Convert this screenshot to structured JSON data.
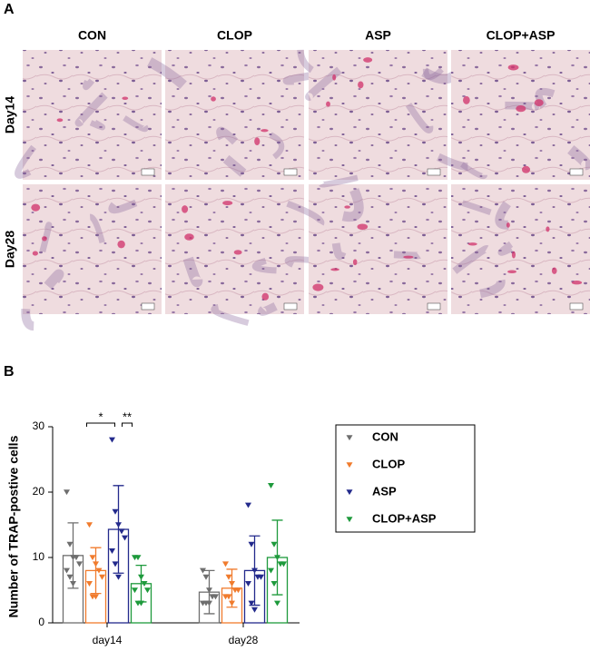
{
  "panel_a": {
    "label": "A",
    "columns": [
      "CON",
      "CLOP",
      "ASP",
      "CLOP+ASP"
    ],
    "rows": [
      "Day14",
      "Day28"
    ]
  },
  "panel_b": {
    "label": "B"
  },
  "chart_data": {
    "type": "bar",
    "ylabel": "Number of TRAP-postive cells",
    "categories": [
      "day14",
      "day28"
    ],
    "ylim": [
      0,
      30
    ],
    "yticks": [
      0,
      10,
      20,
      30
    ],
    "legend": "right",
    "series": [
      {
        "name": "CON",
        "color": "#6e6e6e",
        "values": [
          10.3,
          4.7
        ],
        "errors": [
          5,
          3.3
        ],
        "points": [
          [
            20,
            12,
            10,
            10,
            9,
            8,
            7,
            6
          ],
          [
            8,
            7,
            5,
            4,
            4,
            3,
            3,
            3
          ]
        ]
      },
      {
        "name": "CLOP",
        "color": "#f07b2d",
        "values": [
          8,
          5.3
        ],
        "errors": [
          3.5,
          2.9
        ],
        "points": [
          [
            15,
            10,
            9,
            8,
            7,
            6,
            4,
            4
          ],
          [
            9,
            7,
            6,
            5,
            5,
            4,
            4,
            3
          ]
        ]
      },
      {
        "name": "ASP",
        "color": "#232a8c",
        "values": [
          14.3,
          8
        ],
        "errors": [
          6.7,
          5.3
        ],
        "points": [
          [
            28,
            17,
            15,
            14,
            13,
            11,
            9,
            7
          ],
          [
            18,
            12,
            8,
            7,
            7,
            6,
            3,
            2
          ]
        ]
      },
      {
        "name": "CLOP+ASP",
        "color": "#1e9a3c",
        "values": [
          6,
          10
        ],
        "errors": [
          2.8,
          5.7
        ],
        "points": [
          [
            10,
            10,
            7,
            6,
            5,
            5,
            3,
            3
          ],
          [
            21,
            12,
            10,
            9,
            9,
            8,
            6,
            3
          ]
        ]
      }
    ],
    "annotations": [
      "*",
      "**"
    ]
  }
}
